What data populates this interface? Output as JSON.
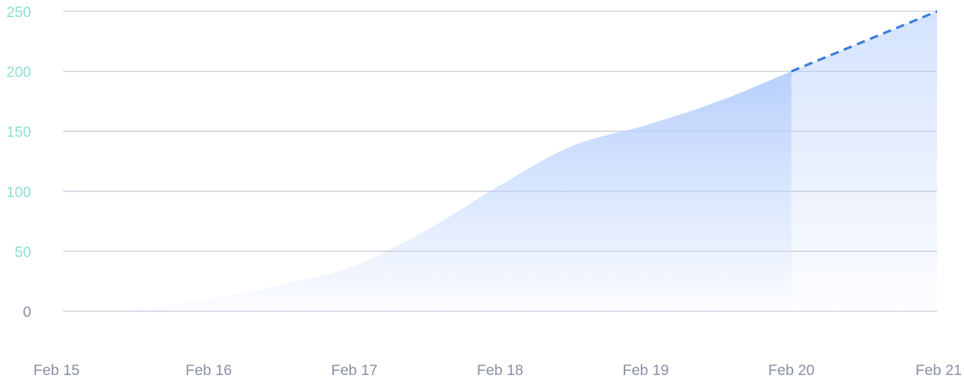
{
  "chart_data": {
    "type": "area",
    "title": "",
    "xlabel": "",
    "ylabel": "",
    "x_ticks": [
      "Feb 15",
      "Feb 16",
      "Feb 17",
      "Feb 18",
      "Feb 19",
      "Feb 20",
      "Feb 21"
    ],
    "y_ticks": [
      "0",
      "50",
      "100",
      "150",
      "200",
      "250"
    ],
    "ylim": [
      0,
      250
    ],
    "grid": true,
    "series": [
      {
        "style": "solid-area",
        "x": [
          "Feb 15",
          "Feb 15.5",
          "Feb 16",
          "Feb 16.5",
          "Feb 17",
          "Feb 17.5",
          "Feb 18",
          "Feb 18.5",
          "Feb 19",
          "Feb 19.5",
          "Feb 20"
        ],
        "values": [
          0,
          2,
          10,
          22,
          38,
          68,
          105,
          138,
          155,
          175,
          200
        ]
      },
      {
        "style": "dashed-projection",
        "x": [
          "Feb 20",
          "Feb 21"
        ],
        "values": [
          200,
          250
        ]
      }
    ],
    "colors": {
      "area": "#b8d0fc",
      "projection_line": "#3a7ee0",
      "grid": "#c5c8d8",
      "ytick_zero": "#8a8fa3",
      "ytick_other": "#8fdfcf",
      "xtick": "#8a8fa3"
    }
  }
}
